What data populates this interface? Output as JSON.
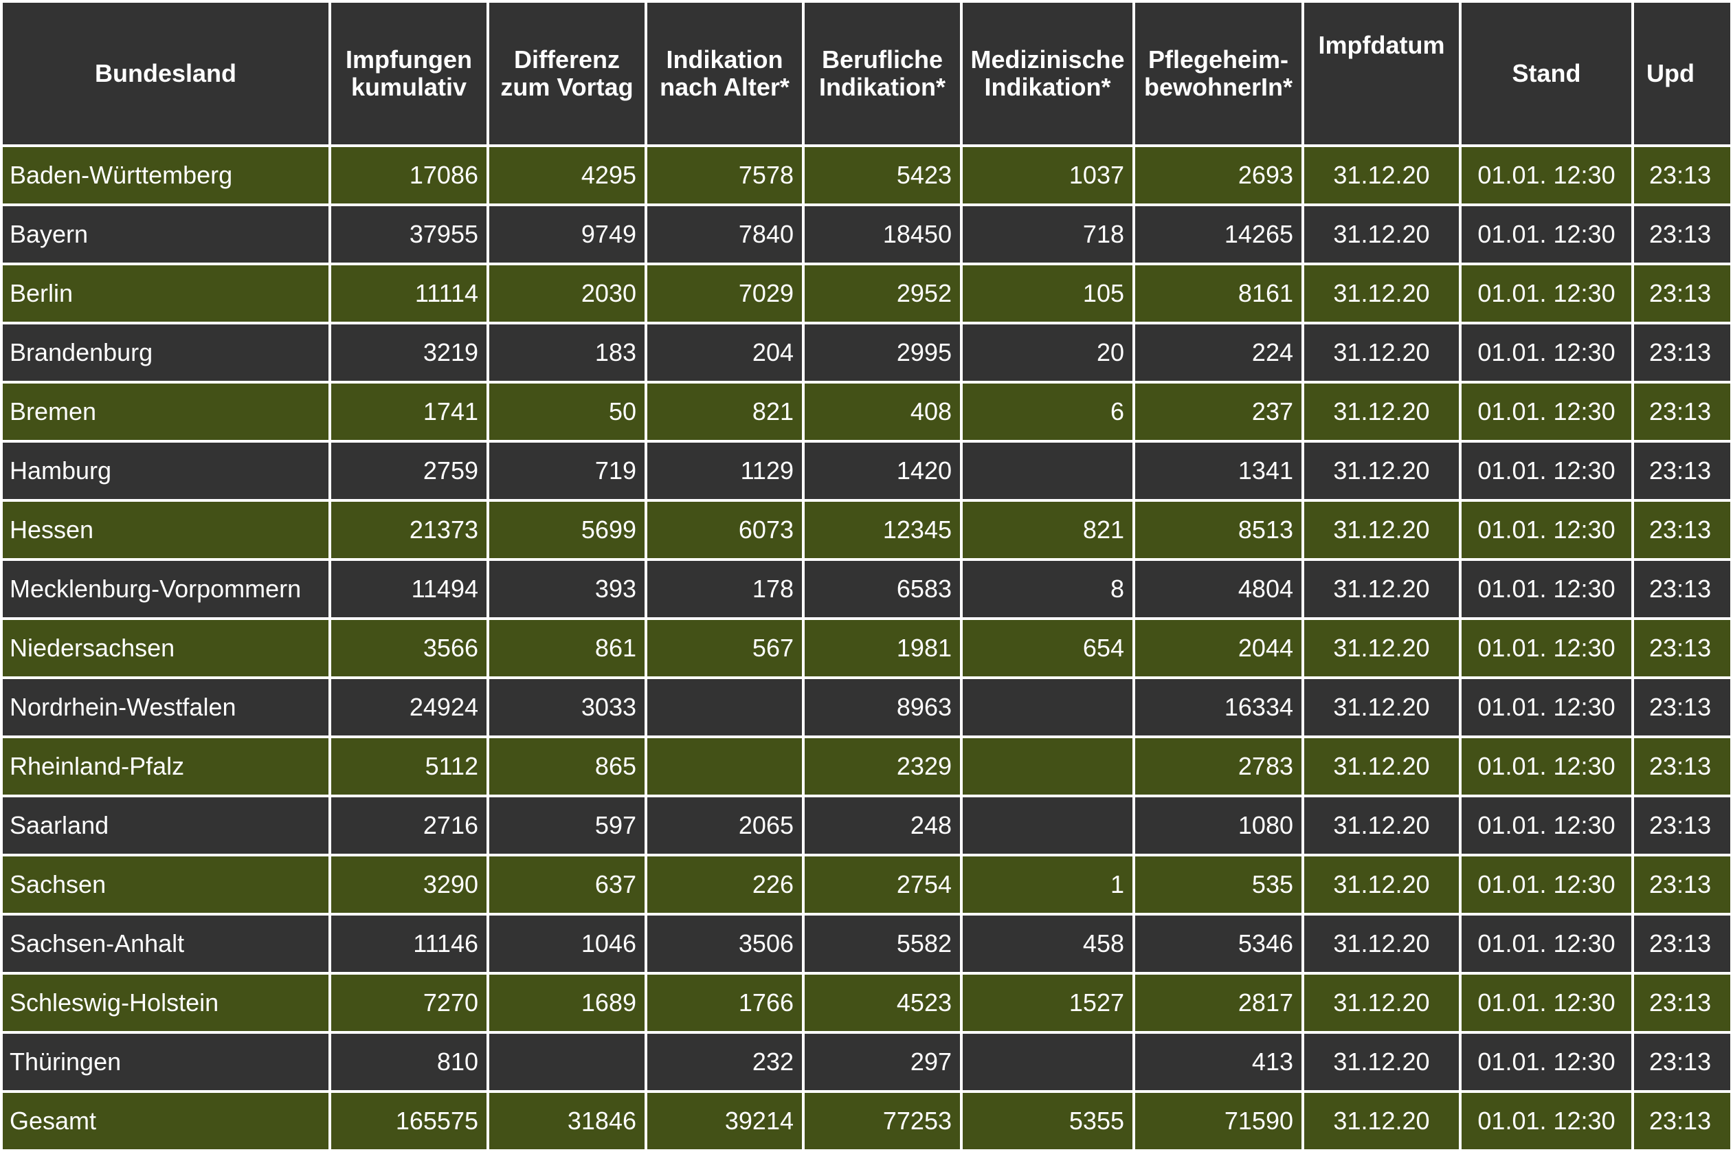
{
  "headers": [
    [
      "Bundesland"
    ],
    [
      "Impfungen",
      "kumulativ"
    ],
    [
      "Differenz",
      "zum Vortag"
    ],
    [
      "Indikation",
      "nach Alter*"
    ],
    [
      "Berufliche",
      "Indikation*"
    ],
    [
      "Medizinische",
      "Indikation*"
    ],
    [
      "Pflegeheim-",
      "bewohnerIn*"
    ],
    [
      "Impfdatum"
    ],
    [
      "Stand"
    ],
    [
      "Upd"
    ]
  ],
  "rows": [
    [
      "Baden-Württemberg",
      "17086",
      "4295",
      "7578",
      "5423",
      "1037",
      "2693",
      "31.12.20",
      "01.01. 12:30",
      "23:13"
    ],
    [
      "Bayern",
      "37955",
      "9749",
      "7840",
      "18450",
      "718",
      "14265",
      "31.12.20",
      "01.01. 12:30",
      "23:13"
    ],
    [
      "Berlin",
      "11114",
      "2030",
      "7029",
      "2952",
      "105",
      "8161",
      "31.12.20",
      "01.01. 12:30",
      "23:13"
    ],
    [
      "Brandenburg",
      "3219",
      "183",
      "204",
      "2995",
      "20",
      "224",
      "31.12.20",
      "01.01. 12:30",
      "23:13"
    ],
    [
      "Bremen",
      "1741",
      "50",
      "821",
      "408",
      "6",
      "237",
      "31.12.20",
      "01.01. 12:30",
      "23:13"
    ],
    [
      "Hamburg",
      "2759",
      "719",
      "1129",
      "1420",
      "",
      "1341",
      "31.12.20",
      "01.01. 12:30",
      "23:13"
    ],
    [
      "Hessen",
      "21373",
      "5699",
      "6073",
      "12345",
      "821",
      "8513",
      "31.12.20",
      "01.01. 12:30",
      "23:13"
    ],
    [
      "Mecklenburg-Vorpommern",
      "11494",
      "393",
      "178",
      "6583",
      "8",
      "4804",
      "31.12.20",
      "01.01. 12:30",
      "23:13"
    ],
    [
      "Niedersachsen",
      "3566",
      "861",
      "567",
      "1981",
      "654",
      "2044",
      "31.12.20",
      "01.01. 12:30",
      "23:13"
    ],
    [
      "Nordrhein-Westfalen",
      "24924",
      "3033",
      "",
      "8963",
      "",
      "16334",
      "31.12.20",
      "01.01. 12:30",
      "23:13"
    ],
    [
      "Rheinland-Pfalz",
      "5112",
      "865",
      "",
      "2329",
      "",
      "2783",
      "31.12.20",
      "01.01. 12:30",
      "23:13"
    ],
    [
      "Saarland",
      "2716",
      "597",
      "2065",
      "248",
      "",
      "1080",
      "31.12.20",
      "01.01. 12:30",
      "23:13"
    ],
    [
      "Sachsen",
      "3290",
      "637",
      "226",
      "2754",
      "1",
      "535",
      "31.12.20",
      "01.01. 12:30",
      "23:13"
    ],
    [
      "Sachsen-Anhalt",
      "11146",
      "1046",
      "3506",
      "5582",
      "458",
      "5346",
      "31.12.20",
      "01.01. 12:30",
      "23:13"
    ],
    [
      "Schleswig-Holstein",
      "7270",
      "1689",
      "1766",
      "4523",
      "1527",
      "2817",
      "31.12.20",
      "01.01. 12:30",
      "23:13"
    ],
    [
      "Thüringen",
      "810",
      "",
      "232",
      "297",
      "",
      "413",
      "31.12.20",
      "01.01. 12:30",
      "23:13"
    ],
    [
      "Gesamt",
      "165575",
      "31846",
      "39214",
      "77253",
      "5355",
      "71590",
      "31.12.20",
      "01.01. 12:30",
      "23:13"
    ]
  ],
  "colors": {
    "header_bg": "#333333",
    "row_green": "#435117",
    "row_dark": "#333333",
    "text": "#ffffff",
    "grid": "#ffffff"
  }
}
